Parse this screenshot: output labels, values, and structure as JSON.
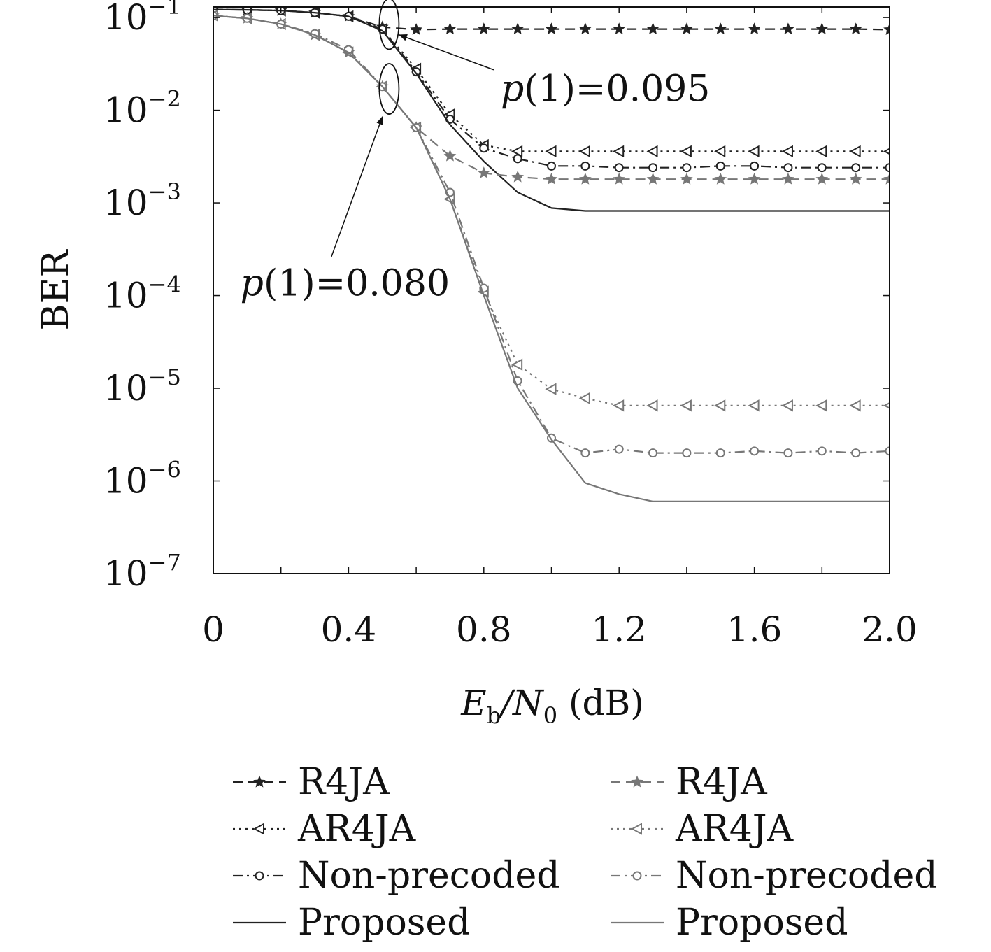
{
  "chart_data": {
    "type": "line",
    "xlabel": {
      "main": "E",
      "sub1": "b",
      "mid": "/N",
      "sub2": "0",
      "tail": " (dB)"
    },
    "ylabel": "BER",
    "yscale": "log",
    "xlim": [
      0,
      2.0
    ],
    "ylim": [
      1e-07,
      0.13
    ],
    "x_ticks": [
      {
        "value": 0,
        "label": "0"
      },
      {
        "value": 0.4,
        "label": "0.4"
      },
      {
        "value": 0.8,
        "label": "0.8"
      },
      {
        "value": 1.2,
        "label": "1.2"
      },
      {
        "value": 1.6,
        "label": "1.6"
      },
      {
        "value": 2.0,
        "label": "2.0"
      }
    ],
    "y_ticks": [
      {
        "value": 0.1,
        "exp": "−1"
      },
      {
        "value": 0.01,
        "exp": "−2"
      },
      {
        "value": 0.001,
        "exp": "−3"
      },
      {
        "value": 0.0001,
        "exp": "−4"
      },
      {
        "value": 1e-05,
        "exp": "−5"
      },
      {
        "value": 1e-06,
        "exp": "−6"
      },
      {
        "value": 1e-07,
        "exp": "−7"
      }
    ],
    "tick_base": "10",
    "grid": false,
    "annotations": [
      {
        "text": "p(1)=0.095",
        "italic": "p",
        "rest": "(1)=0.095",
        "ellipse_x": 0.52,
        "ellipse_y": 0.085,
        "arrow_to_x": 0.55,
        "arrow_to_y": 0.065,
        "text_x": 0.85,
        "text_y": 0.0125
      },
      {
        "text": "p(1)=0.080",
        "italic": "p",
        "rest": "(1)=0.080",
        "ellipse_x": 0.52,
        "ellipse_y": 0.017,
        "arrow_to_x": 0.5,
        "arrow_to_y": 0.0085,
        "text_x": 0.08,
        "text_y": 0.0001
      }
    ],
    "series": [
      {
        "name": "R4JA",
        "color": "#222222",
        "dash": "14,8",
        "marker": "star",
        "x": [
          0,
          0.1,
          0.2,
          0.3,
          0.4,
          0.5,
          0.6,
          0.7,
          0.8,
          0.9,
          1.0,
          1.1,
          1.2,
          1.3,
          1.4,
          1.5,
          1.6,
          1.7,
          1.8,
          1.9,
          2.0
        ],
        "y": [
          0.122,
          0.121,
          0.119,
          0.113,
          0.103,
          0.079,
          0.074,
          0.075,
          0.075,
          0.075,
          0.075,
          0.075,
          0.075,
          0.075,
          0.075,
          0.075,
          0.075,
          0.075,
          0.075,
          0.075,
          0.074
        ]
      },
      {
        "name": "AR4JA",
        "color": "#222222",
        "dash": "3,6",
        "marker": "triangle",
        "x": [
          0,
          0.1,
          0.2,
          0.3,
          0.4,
          0.5,
          0.6,
          0.7,
          0.8,
          0.9,
          1.0,
          1.1,
          1.2,
          1.3,
          1.4,
          1.5,
          1.6,
          1.7,
          1.8,
          1.9,
          2.0
        ],
        "y": [
          0.122,
          0.121,
          0.119,
          0.113,
          0.103,
          0.075,
          0.028,
          0.009,
          0.0042,
          0.0036,
          0.0036,
          0.0036,
          0.0036,
          0.0036,
          0.0036,
          0.0036,
          0.0036,
          0.0036,
          0.0036,
          0.0036,
          0.0036
        ]
      },
      {
        "name": "Non-precoded",
        "color": "#222222",
        "dash": "14,6,3,6",
        "marker": "circle",
        "x": [
          0,
          0.1,
          0.2,
          0.3,
          0.4,
          0.5,
          0.6,
          0.7,
          0.8,
          0.9,
          1.0,
          1.1,
          1.2,
          1.3,
          1.4,
          1.5,
          1.6,
          1.7,
          1.8,
          1.9,
          2.0
        ],
        "y": [
          0.122,
          0.121,
          0.119,
          0.113,
          0.103,
          0.075,
          0.026,
          0.008,
          0.0039,
          0.003,
          0.0025,
          0.0025,
          0.0024,
          0.0024,
          0.0024,
          0.0025,
          0.0025,
          0.0024,
          0.0024,
          0.0024,
          0.0024
        ]
      },
      {
        "name": "Proposed",
        "color": "#222222",
        "dash": "",
        "marker": "none",
        "x": [
          0,
          0.1,
          0.2,
          0.3,
          0.4,
          0.5,
          0.6,
          0.7,
          0.8,
          0.9,
          1.0,
          1.1,
          1.2,
          1.3,
          1.4,
          1.5,
          1.6,
          1.7,
          1.8,
          1.9,
          2.0
        ],
        "y": [
          0.122,
          0.121,
          0.119,
          0.113,
          0.103,
          0.072,
          0.025,
          0.007,
          0.0028,
          0.0013,
          0.00088,
          0.00082,
          0.00082,
          0.00082,
          0.00082,
          0.00082,
          0.00082,
          0.00082,
          0.00082,
          0.00082,
          0.00082
        ]
      },
      {
        "name": "R4JA",
        "color": "#777777",
        "dash": "14,8",
        "marker": "star",
        "x": [
          0,
          0.1,
          0.2,
          0.3,
          0.4,
          0.5,
          0.6,
          0.7,
          0.8,
          0.9,
          1.0,
          1.1,
          1.2,
          1.3,
          1.4,
          1.5,
          1.6,
          1.7,
          1.8,
          1.9,
          2.0
        ],
        "y": [
          0.105,
          0.098,
          0.085,
          0.065,
          0.042,
          0.018,
          0.0065,
          0.0032,
          0.0021,
          0.0019,
          0.0018,
          0.0018,
          0.0018,
          0.0018,
          0.0018,
          0.0018,
          0.0018,
          0.0018,
          0.0018,
          0.0018,
          0.0018
        ]
      },
      {
        "name": "AR4JA",
        "color": "#777777",
        "dash": "3,6",
        "marker": "triangle",
        "x": [
          0,
          0.1,
          0.2,
          0.3,
          0.4,
          0.5,
          0.6,
          0.7,
          0.8,
          0.9,
          1.0,
          1.1,
          1.2,
          1.3,
          1.4,
          1.5,
          1.6,
          1.7,
          1.8,
          1.9,
          2.0
        ],
        "y": [
          0.105,
          0.098,
          0.085,
          0.065,
          0.042,
          0.018,
          0.0065,
          0.0011,
          0.00011,
          1.8e-05,
          9.8e-06,
          7.8e-06,
          6.5e-06,
          6.5e-06,
          6.5e-06,
          6.5e-06,
          6.5e-06,
          6.5e-06,
          6.5e-06,
          6.5e-06,
          6.5e-06
        ]
      },
      {
        "name": "Non-precoded",
        "color": "#777777",
        "dash": "14,6,3,6",
        "marker": "circle",
        "x": [
          0,
          0.1,
          0.2,
          0.3,
          0.4,
          0.5,
          0.6,
          0.7,
          0.8,
          0.9,
          1.0,
          1.1,
          1.2,
          1.3,
          1.4,
          1.5,
          1.6,
          1.7,
          1.8,
          1.9,
          2.0
        ],
        "y": [
          0.105,
          0.098,
          0.085,
          0.067,
          0.045,
          0.018,
          0.0065,
          0.0013,
          0.00012,
          1.2e-05,
          2.9e-06,
          2e-06,
          2.2e-06,
          2e-06,
          2e-06,
          2e-06,
          2.1e-06,
          2e-06,
          2.1e-06,
          2e-06,
          2.1e-06
        ]
      },
      {
        "name": "Proposed",
        "color": "#777777",
        "dash": "",
        "marker": "none",
        "x": [
          0,
          0.1,
          0.2,
          0.3,
          0.4,
          0.5,
          0.6,
          0.7,
          0.8,
          0.9,
          1.0,
          1.1,
          1.2,
          1.3,
          1.4,
          1.5,
          1.6,
          1.7,
          1.8,
          1.9,
          2.0
        ],
        "y": [
          0.105,
          0.098,
          0.085,
          0.065,
          0.042,
          0.018,
          0.0065,
          0.0011,
          0.0001,
          1e-05,
          2.8e-06,
          9.5e-07,
          7.2e-07,
          6e-07,
          6e-07,
          6e-07,
          6e-07,
          6e-07,
          6e-07,
          6e-07,
          6e-07
        ]
      }
    ]
  }
}
